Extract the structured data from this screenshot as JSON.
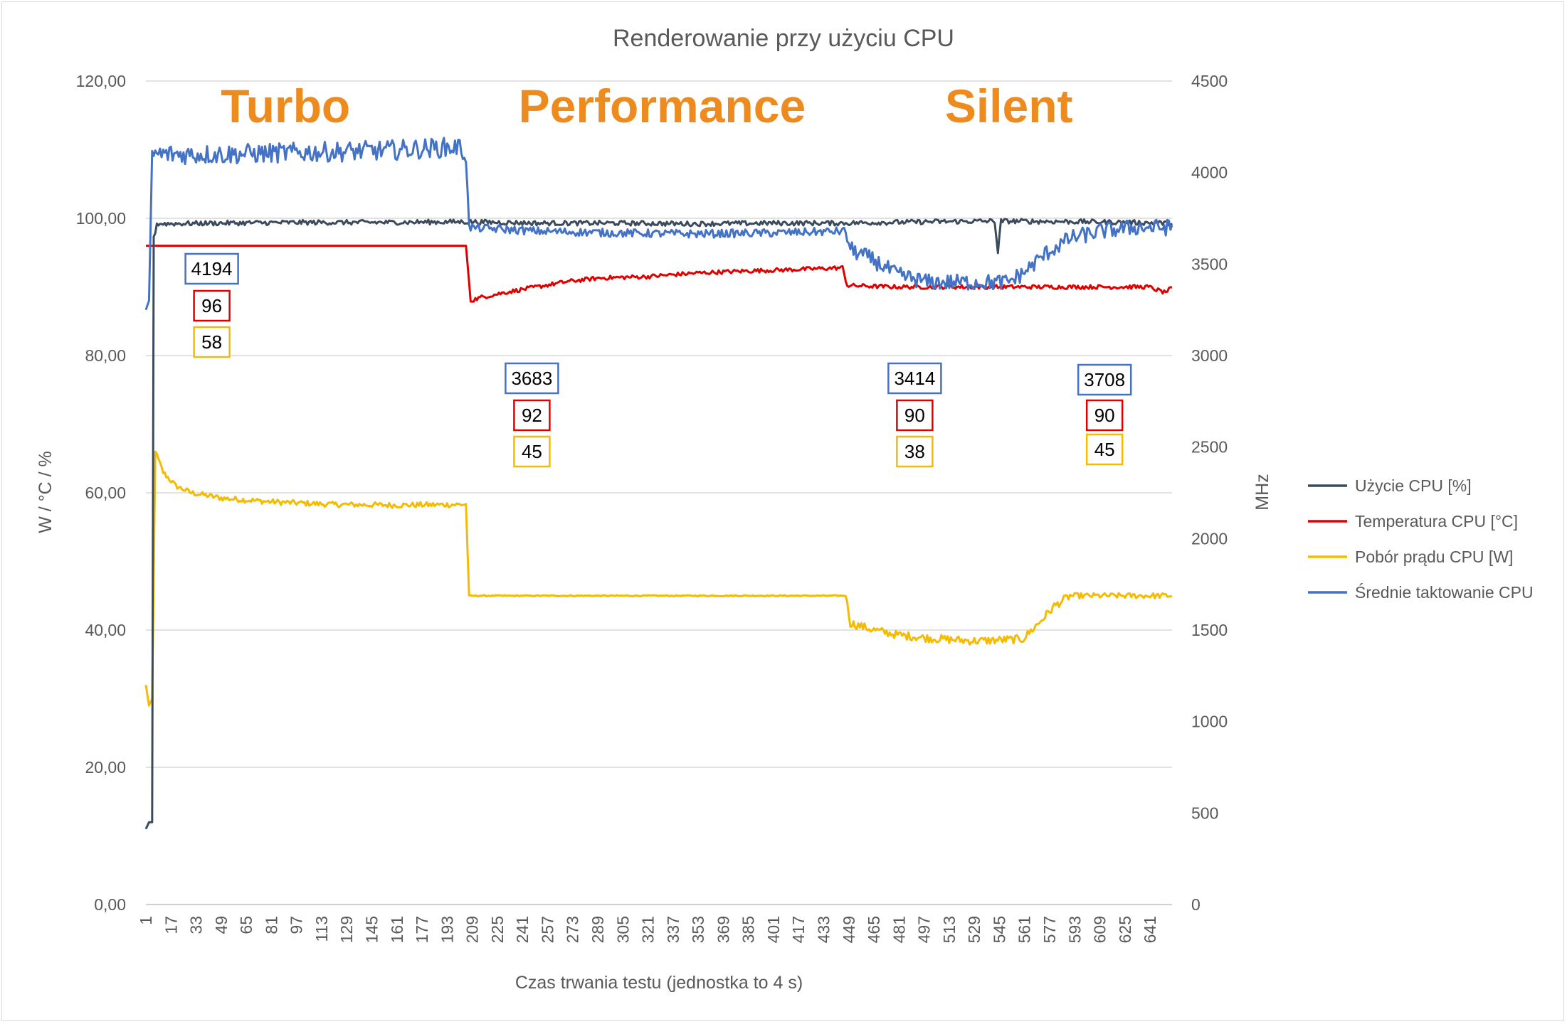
{
  "chart_data": {
    "type": "line",
    "title": "Renderowanie przy użyciu CPU",
    "xlabel": "Czas trwania testu (jednostka to 4 s)",
    "ylabel_left": "W / °C / %",
    "ylabel_right": "MHz",
    "ylim_left": [
      0,
      120
    ],
    "ylim_right": [
      0,
      4500
    ],
    "xlim": [
      1,
      655
    ],
    "left_ticks": [
      "0,00",
      "20,00",
      "40,00",
      "60,00",
      "80,00",
      "100,00",
      "120,00"
    ],
    "right_ticks": [
      "0",
      "500",
      "1000",
      "1500",
      "2000",
      "2500",
      "3000",
      "3500",
      "4000",
      "4500"
    ],
    "x_ticks": [
      "1",
      "17",
      "33",
      "49",
      "65",
      "81",
      "97",
      "113",
      "129",
      "145",
      "161",
      "177",
      "193",
      "209",
      "225",
      "241",
      "257",
      "273",
      "289",
      "305",
      "321",
      "337",
      "353",
      "369",
      "385",
      "401",
      "417",
      "433",
      "449",
      "465",
      "481",
      "497",
      "513",
      "529",
      "545",
      "561",
      "577",
      "593",
      "609",
      "625",
      "641"
    ],
    "grid": true,
    "legend_position": "right",
    "series": [
      {
        "name": "Użycie CPU [%]",
        "color": "#3B4A5C",
        "axis": "left",
        "points": [
          [
            1,
            11
          ],
          [
            3,
            12
          ],
          [
            5,
            12
          ],
          [
            6,
            97
          ],
          [
            8,
            99.2
          ],
          [
            50,
            99.3
          ],
          [
            100,
            99.4
          ],
          [
            150,
            99.4
          ],
          [
            205,
            99.5
          ],
          [
            250,
            99.3
          ],
          [
            300,
            99.3
          ],
          [
            350,
            99.2
          ],
          [
            400,
            99.3
          ],
          [
            445,
            99.3
          ],
          [
            500,
            99.5
          ],
          [
            542,
            99.6
          ],
          [
            544,
            95
          ],
          [
            546,
            99.6
          ],
          [
            600,
            99.5
          ],
          [
            655,
            99.3
          ]
        ]
      },
      {
        "name": "Temperatura CPU [°C]",
        "color": "#E00000",
        "axis": "left",
        "points": [
          [
            1,
            96
          ],
          [
            50,
            96
          ],
          [
            100,
            96
          ],
          [
            150,
            96
          ],
          [
            205,
            96
          ],
          [
            208,
            88
          ],
          [
            215,
            88.5
          ],
          [
            230,
            89.2
          ],
          [
            250,
            90
          ],
          [
            270,
            90.8
          ],
          [
            290,
            91.3
          ],
          [
            320,
            91.5
          ],
          [
            350,
            92
          ],
          [
            380,
            92.3
          ],
          [
            410,
            92.5
          ],
          [
            445,
            92.8
          ],
          [
            448,
            90.2
          ],
          [
            480,
            90
          ],
          [
            520,
            90
          ],
          [
            560,
            90
          ],
          [
            600,
            90
          ],
          [
            640,
            90
          ],
          [
            650,
            89.2
          ],
          [
            655,
            89.8
          ]
        ]
      },
      {
        "name": "Pobór prądu CPU [W]",
        "color": "#F5BB00",
        "axis": "left",
        "points": [
          [
            1,
            32
          ],
          [
            3,
            29
          ],
          [
            5,
            30
          ],
          [
            7,
            66
          ],
          [
            12,
            63
          ],
          [
            20,
            61
          ],
          [
            30,
            60
          ],
          [
            50,
            59.2
          ],
          [
            80,
            58.7
          ],
          [
            120,
            58.3
          ],
          [
            160,
            58.2
          ],
          [
            205,
            58.3
          ],
          [
            207,
            45
          ],
          [
            250,
            45
          ],
          [
            300,
            45
          ],
          [
            350,
            45
          ],
          [
            400,
            45
          ],
          [
            447,
            45
          ],
          [
            450,
            41
          ],
          [
            465,
            40
          ],
          [
            480,
            39.3
          ],
          [
            500,
            38.8
          ],
          [
            530,
            38.4
          ],
          [
            560,
            38.7
          ],
          [
            570,
            41
          ],
          [
            580,
            43.5
          ],
          [
            590,
            45
          ],
          [
            620,
            45
          ],
          [
            655,
            45
          ]
        ]
      },
      {
        "name": "Średnie taktowanie CPU",
        "color": "#4472C4",
        "axis": "right",
        "points": [
          [
            1,
            3250
          ],
          [
            3,
            3300
          ],
          [
            5,
            4100
          ],
          [
            50,
            4100
          ],
          [
            100,
            4110
          ],
          [
            150,
            4120
          ],
          [
            200,
            4140
          ],
          [
            205,
            4100
          ],
          [
            207,
            3700
          ],
          [
            250,
            3680
          ],
          [
            300,
            3670
          ],
          [
            350,
            3665
          ],
          [
            400,
            3670
          ],
          [
            447,
            3680
          ],
          [
            450,
            3580
          ],
          [
            465,
            3520
          ],
          [
            480,
            3440
          ],
          [
            500,
            3400
          ],
          [
            530,
            3400
          ],
          [
            550,
            3400
          ],
          [
            560,
            3450
          ],
          [
            575,
            3560
          ],
          [
            590,
            3640
          ],
          [
            610,
            3680
          ],
          [
            630,
            3700
          ],
          [
            655,
            3700
          ]
        ]
      }
    ],
    "annotations": [
      {
        "label": "Turbo",
        "x": 90
      },
      {
        "label": "Performance",
        "x": 330
      },
      {
        "label": "Silent",
        "x": 551
      }
    ],
    "value_boxes": [
      {
        "x": 43,
        "clock": "4194",
        "temp": "96",
        "power": "58"
      },
      {
        "x": 247,
        "clock": "3683",
        "temp": "92",
        "power": "45"
      },
      {
        "x": 491,
        "clock": "3414",
        "temp": "90",
        "power": "38"
      },
      {
        "x": 612,
        "clock": "3708",
        "temp": "90",
        "power": "45"
      }
    ]
  }
}
